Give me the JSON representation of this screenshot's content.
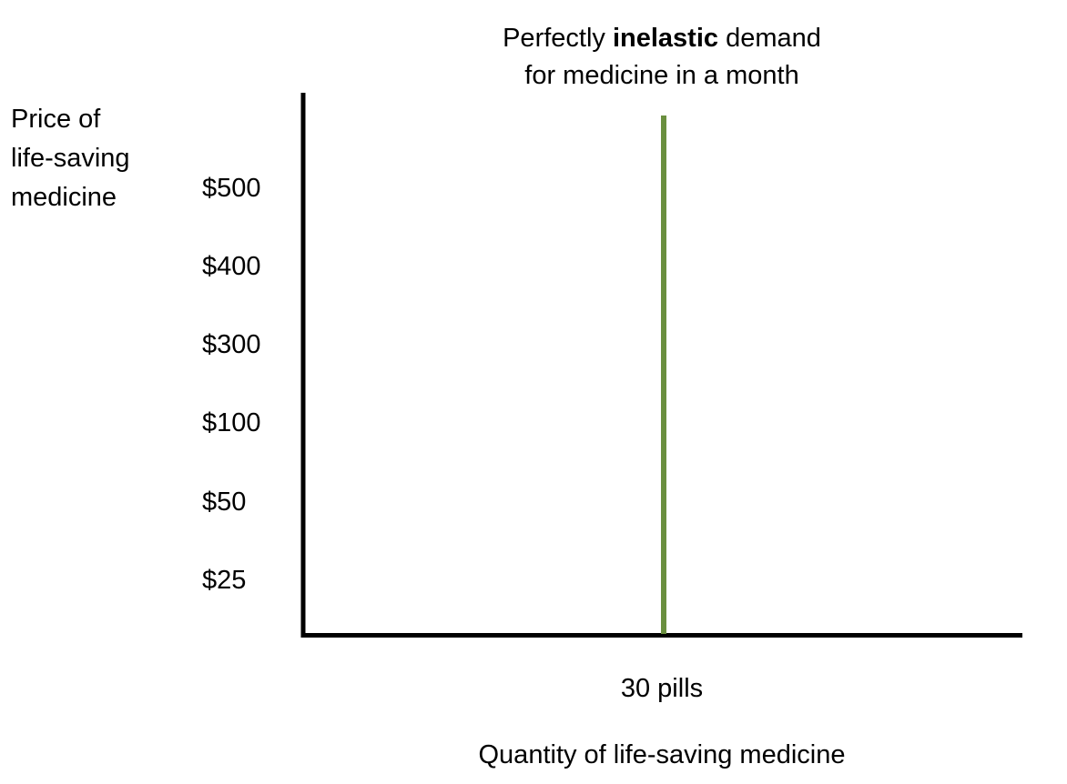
{
  "chart_data": {
    "type": "line",
    "title": {
      "line1_before": "Perfectly ",
      "line1_bold": "inelastic",
      "line1_after": " demand",
      "line2": "for medicine in a month"
    },
    "ylabel": [
      "Price of",
      "life-saving",
      "medicine"
    ],
    "xlabel": "Quantity of life-saving medicine",
    "y_tick_labels": [
      "$500",
      "$400",
      "$300",
      "$100",
      "$50",
      "$25"
    ],
    "x_tick_labels": [
      "30 pills"
    ],
    "series": [
      {
        "type": "vertical-line",
        "x": "30 pills",
        "color": "#6a8f3f"
      }
    ],
    "grid": false,
    "legend": "none",
    "axis_color": "#000000"
  }
}
